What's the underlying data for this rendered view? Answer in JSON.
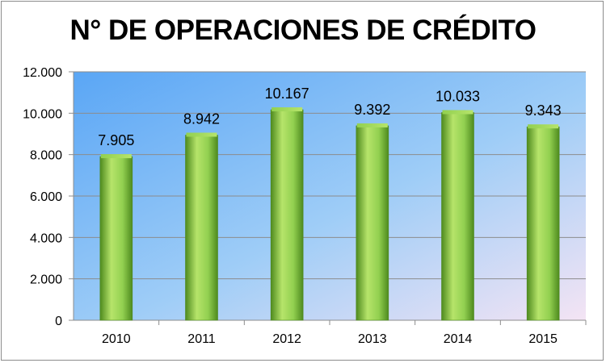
{
  "chart_data": {
    "type": "bar",
    "title": "N° DE OPERACIONES DE CRÉDITO",
    "categories": [
      "2010",
      "2011",
      "2012",
      "2013",
      "2014",
      "2015"
    ],
    "values": [
      7905,
      8942,
      10167,
      9392,
      10033,
      9343
    ],
    "value_labels": [
      "7.905",
      "8.942",
      "10.167",
      "9.392",
      "10.033",
      "9.343"
    ],
    "ylim": [
      0,
      12000
    ],
    "yticks": [
      0,
      2000,
      4000,
      6000,
      8000,
      10000,
      12000
    ],
    "ytick_labels": [
      "0",
      "2.000",
      "4.000",
      "6.000",
      "8.000",
      "10.000",
      "12.000"
    ],
    "xlabel": "",
    "ylabel": "",
    "grid": true,
    "legend": "none",
    "colors": {
      "bar_light": "#b6e46a",
      "bar_mid": "#92d050",
      "bar_dark": "#4e8a1e",
      "plot_bg_start": "#5aa6f5",
      "plot_bg_mid": "#9fcdf7",
      "plot_bg_end": "#f4e4f4",
      "gridline": "#8c8c8c"
    }
  }
}
